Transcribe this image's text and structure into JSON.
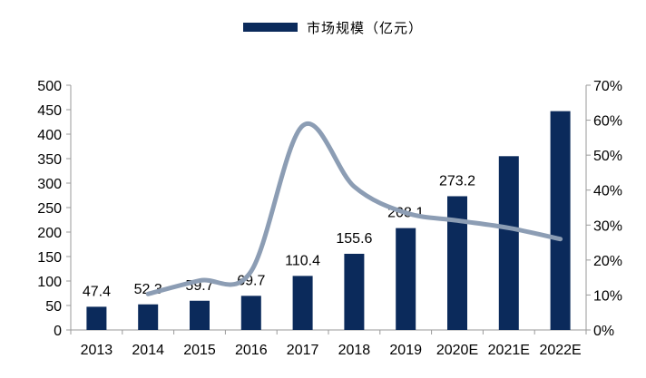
{
  "chart_data": {
    "type": "bar",
    "legend": {
      "position": "top-center",
      "entries": [
        "市场规模（亿元）"
      ]
    },
    "categories": [
      "2013",
      "2014",
      "2015",
      "2016",
      "2017",
      "2018",
      "2019",
      "2020E",
      "2021E",
      "2022E"
    ],
    "series": [
      {
        "name": "市场规模（亿元）",
        "type": "bar",
        "axis": "left",
        "color": "#0b2a5b",
        "values": [
          47.4,
          52.3,
          59.7,
          69.7,
          110.4,
          155.6,
          208.1,
          273.2,
          355,
          447
        ],
        "labels": [
          "47.4",
          "52.3",
          "59.7",
          "69.7",
          "110.4",
          "155.6",
          "208.1",
          "273.2",
          null,
          null
        ]
      },
      {
        "type": "line",
        "axis": "right",
        "color": "#8c9db4",
        "smooth": true,
        "values": [
          null,
          10.3,
          14.1,
          16.8,
          58.4,
          41.0,
          33.5,
          31.3,
          29.2,
          26.0
        ]
      }
    ],
    "y_left": {
      "min": 0,
      "max": 500,
      "ticks": [
        "0",
        "50",
        "100",
        "150",
        "200",
        "250",
        "300",
        "350",
        "400",
        "450",
        "500"
      ]
    },
    "y_right": {
      "min": 0,
      "max": 70,
      "ticks": [
        "0%",
        "10%",
        "20%",
        "30%",
        "40%",
        "50%",
        "60%",
        "70%"
      ]
    },
    "grid": false,
    "title": "",
    "xlabel": "",
    "ylabel": ""
  }
}
